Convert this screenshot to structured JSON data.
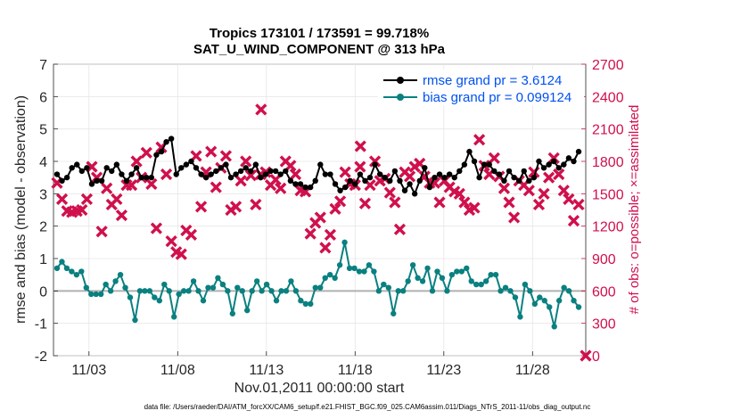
{
  "chart_data": {
    "type": "line",
    "title": "Tropics 173101 / 173591 = 99.718%",
    "subtitle": "SAT_U_WIND_COMPONENT @ 313 hPa",
    "xlabel": "Nov.01,2011 00:00:00 start",
    "ylabel": "rmse and bias (model - observation)",
    "ylabel_right": "# of obs: o=possible; ×=assimilated",
    "footer": "data file: /Users/raeder/DAI/ATM_forcXX/CAM6_setup/f.e21.FHIST_BGC.f09_025.CAM6assim.011/Diags_NTrS_2011-11/obs_diag_output.nc",
    "x_ticks": [
      "11/03",
      "11/08",
      "11/13",
      "11/18",
      "11/23",
      "11/28"
    ],
    "x_tick_days": [
      3,
      8,
      13,
      18,
      23,
      28
    ],
    "xlim": [
      1,
      31
    ],
    "ylim": [
      -2,
      7
    ],
    "y_ticks": [
      "-2",
      "-1",
      "0",
      "1",
      "2",
      "3",
      "4",
      "5",
      "6",
      "7"
    ],
    "ylim_right": [
      0,
      2700
    ],
    "y_ticks_right": [
      "0",
      "300",
      "600",
      "900",
      "1200",
      "1500",
      "1800",
      "2100",
      "2400",
      "2700"
    ],
    "zero_line": 0,
    "legend": [
      {
        "label": "rmse grand pr = 3.6124",
        "color": "#000000"
      },
      {
        "label": "bias grand pr = 0.099124",
        "color": "#008080"
      }
    ],
    "colors": {
      "rmse": "#000000",
      "bias": "#0a8080",
      "obs": "#d0104c",
      "zero": "#b0b0b0",
      "legend_text": "#0050f0"
    },
    "series": [
      {
        "name": "rmse",
        "values": [
          3.6,
          3.4,
          3.5,
          3.8,
          3.9,
          3.7,
          3.8,
          3.3,
          3.4,
          3.4,
          3.8,
          3.7,
          3.9,
          3.6,
          3.4,
          3.6,
          3.8,
          3.5,
          3.5,
          3.5,
          4.2,
          4.3,
          4.6,
          4.7,
          3.6,
          3.8,
          3.9,
          4.0,
          3.8,
          3.6,
          3.5,
          3.6,
          3.7,
          3.8,
          3.9,
          3.5,
          3.6,
          3.7,
          3.8,
          3.7,
          3.9,
          3.5,
          3.6,
          3.7,
          3.7,
          3.6,
          3.7,
          3.4,
          3.3,
          3.3,
          3.2,
          3.2,
          3.4,
          3.9,
          3.6,
          3.6,
          3.3,
          3.1,
          3.2,
          3.4,
          3.3,
          3.6,
          3.4,
          3.5,
          3.9,
          3.6,
          3.5,
          3.4,
          3.7,
          3.4,
          3.1,
          3.3,
          3.0,
          3.4,
          3.8,
          3.2,
          3.5,
          3.6,
          3.5,
          3.6,
          3.5,
          3.7,
          3.9,
          4.3,
          4.0,
          3.5,
          3.9,
          3.9,
          3.7,
          3.6,
          3.4,
          3.7,
          3.5,
          3.4,
          3.7,
          3.4,
          3.5,
          4.0,
          3.8,
          3.9,
          4.0,
          3.8,
          3.9,
          4.1,
          4.0,
          4.3
        ]
      },
      {
        "name": "bias",
        "values": [
          0.7,
          0.9,
          0.7,
          0.6,
          0.5,
          0.6,
          0.1,
          -0.1,
          -0.1,
          -0.1,
          0.2,
          0.0,
          0.3,
          0.5,
          0.1,
          -0.2,
          -0.9,
          0.0,
          0.0,
          0.0,
          -0.2,
          -0.3,
          0.2,
          0.0,
          -0.8,
          -0.1,
          0.0,
          0.0,
          0.3,
          0.0,
          -0.3,
          0.1,
          0.1,
          0.4,
          0.2,
          0.0,
          -0.7,
          0.1,
          0.0,
          -0.6,
          0.0,
          0.3,
          0.0,
          0.2,
          0.0,
          -0.3,
          0.0,
          0.0,
          0.3,
          0.0,
          -0.3,
          -0.4,
          -0.4,
          0.1,
          0.1,
          0.4,
          0.5,
          0.4,
          0.8,
          1.5,
          0.7,
          0.7,
          0.6,
          0.6,
          0.8,
          0.6,
          0.0,
          0.2,
          0.1,
          -0.7,
          0.0,
          0.0,
          0.3,
          0.8,
          0.4,
          0.3,
          0.7,
          0.0,
          0.6,
          0.4,
          0.0,
          0.5,
          0.6,
          0.6,
          0.7,
          0.3,
          0.2,
          0.2,
          0.3,
          0.5,
          0.5,
          0.0,
          0.1,
          0.0,
          -0.2,
          -0.8,
          0.2,
          0.0,
          -0.4,
          -0.2,
          -0.3,
          -0.5,
          -1.1,
          -0.3,
          0.1,
          0.0,
          -0.3,
          -0.5
        ]
      },
      {
        "name": "obs_assimilated",
        "values": [
          1600,
          1450,
          1340,
          1330,
          1340,
          1350,
          1450,
          1750,
          1650,
          1150,
          1550,
          1400,
          1450,
          1300,
          1580,
          1580,
          1800,
          1650,
          1880,
          1590,
          1180,
          1930,
          1680,
          1060,
          960,
          940,
          1160,
          1120,
          1850,
          1380,
          1700,
          1890,
          1560,
          1740,
          1850,
          1350,
          1380,
          1620,
          1800,
          1670,
          1400,
          1680,
          1700,
          1580,
          1630,
          1550,
          1800,
          1760,
          1680,
          1530,
          1520,
          1130,
          1230,
          1280,
          1000,
          1120,
          1360,
          1430,
          1700,
          1590,
          1580,
          1750,
          1410,
          1580,
          1800,
          1620,
          1640,
          1510,
          1420,
          1170,
          1700,
          1660,
          1750,
          1780,
          1660,
          1600,
          1600,
          1420,
          1620,
          1560,
          1520,
          1500,
          1420,
          1350,
          1370,
          2000,
          1760,
          1680,
          1830,
          1660,
          1550,
          1420,
          1280,
          1620,
          1580,
          1530,
          1700,
          1400,
          1500,
          1650,
          1830,
          1680,
          1530,
          1450,
          1250,
          1400
        ]
      }
    ],
    "outliers": [
      {
        "series": "obs_assimilated",
        "x": 12.7,
        "y": 2280
      },
      {
        "series": "obs_assimilated",
        "x": 18.3,
        "y": 1940
      },
      {
        "series": "obs_assimilated",
        "x": 31.0,
        "y": 0
      }
    ]
  }
}
